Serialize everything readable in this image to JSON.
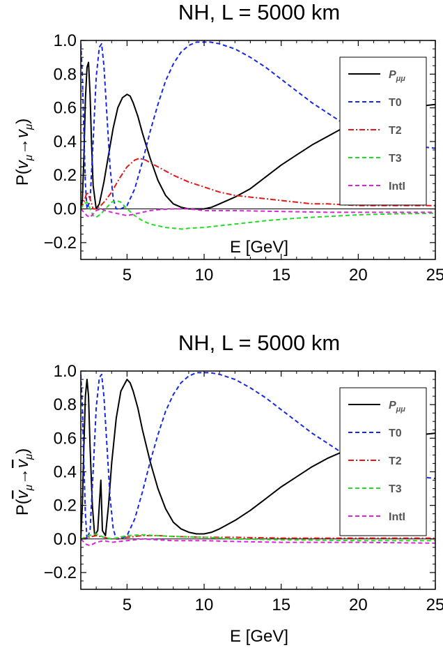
{
  "chart_data": [
    {
      "type": "line",
      "title": "NH, L = 5000 km",
      "xlabel": "E [GeV]",
      "ylabel": "P(ν_μ→ν_μ)",
      "xlim": [
        2,
        25
      ],
      "ylim": [
        -0.3,
        1.0
      ],
      "xticks": [
        "5",
        "10",
        "15",
        "20",
        "25"
      ],
      "yticks": [
        "−0.2",
        "0.0",
        "0.2",
        "0.4",
        "0.6",
        "0.8",
        "1.0"
      ],
      "zero_line": true,
      "legend_position": "top-right",
      "series": [
        {
          "name": "P_μμ",
          "color": "#000000",
          "dash": "solid",
          "x": [
            2,
            2.1,
            2.2,
            2.3,
            2.4,
            2.5,
            2.6,
            2.7,
            2.8,
            3.0,
            3.2,
            3.5,
            3.8,
            4.1,
            4.4,
            4.7,
            5.0,
            5.2,
            5.4,
            5.7,
            6.0,
            6.5,
            7.0,
            7.5,
            8.0,
            8.5,
            9.0,
            9.5,
            10.0,
            10.5,
            11.0,
            12.0,
            13.0,
            14.0,
            15.0,
            16.0,
            17.0,
            18.0,
            19.0,
            20.0,
            21.0,
            22.0,
            23.0,
            24.0,
            25.0
          ],
          "y": [
            0.0,
            0.05,
            0.3,
            0.65,
            0.84,
            0.87,
            0.68,
            0.38,
            0.14,
            0.0,
            0.03,
            0.16,
            0.32,
            0.48,
            0.6,
            0.66,
            0.68,
            0.67,
            0.63,
            0.55,
            0.45,
            0.3,
            0.17,
            0.08,
            0.03,
            0.01,
            0.0,
            0.0,
            0.0,
            0.01,
            0.03,
            0.07,
            0.12,
            0.19,
            0.26,
            0.32,
            0.38,
            0.43,
            0.48,
            0.52,
            0.55,
            0.58,
            0.6,
            0.61,
            0.62
          ]
        },
        {
          "name": "T0",
          "color": "#1428e6",
          "dash": "6,4",
          "x": [
            2,
            2.1,
            2.2,
            2.3,
            2.4,
            2.6,
            2.8,
            3.0,
            3.2,
            3.35,
            3.5,
            3.7,
            3.9,
            4.1,
            4.3,
            4.6,
            5.0,
            5.5,
            6.0,
            6.5,
            7.0,
            7.5,
            8.0,
            8.5,
            9.0,
            9.5,
            10.0,
            10.4,
            11.0,
            12.0,
            13.0,
            14.0,
            15.0,
            16.0,
            17.0,
            18.0,
            19.0,
            20.0,
            21.0,
            22.0,
            23.0,
            24.0,
            25.0
          ],
          "y": [
            0.98,
            0.8,
            0.45,
            0.15,
            0.0,
            0.05,
            0.4,
            0.78,
            0.96,
            0.98,
            0.85,
            0.55,
            0.25,
            0.06,
            0.0,
            0.0,
            0.02,
            0.12,
            0.28,
            0.46,
            0.62,
            0.76,
            0.86,
            0.93,
            0.97,
            0.99,
            0.99,
            0.99,
            0.98,
            0.95,
            0.9,
            0.84,
            0.77,
            0.7,
            0.63,
            0.57,
            0.51,
            0.47,
            0.43,
            0.4,
            0.38,
            0.37,
            0.36
          ]
        },
        {
          "name": "T2",
          "color": "#e11919",
          "dash": "8,3,2,3",
          "x": [
            2,
            2.2,
            2.4,
            2.6,
            2.8,
            3.0,
            3.3,
            3.6,
            4.0,
            4.5,
            5.0,
            5.5,
            5.8,
            6.2,
            7.0,
            8.0,
            9.0,
            10.0,
            11.0,
            12.0,
            13.0,
            14.0,
            15.0,
            16.0,
            17.0,
            18.0,
            20.0,
            22.0,
            25.0
          ],
          "y": [
            0.0,
            0.04,
            0.1,
            0.06,
            0.0,
            0.0,
            0.02,
            0.05,
            0.1,
            0.18,
            0.25,
            0.29,
            0.3,
            0.29,
            0.25,
            0.2,
            0.16,
            0.13,
            0.1,
            0.08,
            0.07,
            0.06,
            0.05,
            0.04,
            0.03,
            0.03,
            0.02,
            0.02,
            0.02
          ]
        },
        {
          "name": "T3",
          "color": "#22dd22",
          "dash": "6,4",
          "x": [
            2,
            2.2,
            2.4,
            2.6,
            2.8,
            3.0,
            3.3,
            3.6,
            4.0,
            4.3,
            4.6,
            5.0,
            5.5,
            6.0,
            6.5,
            7.0,
            7.5,
            8.0,
            8.6,
            9.0,
            10.0,
            11.0,
            12.0,
            13.0,
            14.0,
            16.0,
            18.0,
            20.0,
            22.0,
            25.0
          ],
          "y": [
            0.0,
            0.03,
            0.04,
            0.0,
            -0.04,
            -0.05,
            -0.03,
            0.0,
            0.04,
            0.05,
            0.04,
            0.0,
            -0.04,
            -0.07,
            -0.09,
            -0.1,
            -0.11,
            -0.115,
            -0.12,
            -0.115,
            -0.11,
            -0.1,
            -0.09,
            -0.08,
            -0.07,
            -0.055,
            -0.045,
            -0.035,
            -0.03,
            -0.025
          ]
        },
        {
          "name": "IntI",
          "color": "#e020e0",
          "dash": "6,4",
          "x": [
            2,
            2.2,
            2.4,
            2.6,
            2.8,
            3.0,
            3.3,
            3.6,
            4.0,
            4.5,
            5.0,
            5.5,
            6.0,
            6.5,
            7.0,
            8.0,
            9.0,
            10.0,
            12.0,
            15.0,
            18.0,
            20.0,
            22.0,
            25.0
          ],
          "y": [
            0.0,
            -0.02,
            -0.04,
            -0.05,
            -0.03,
            -0.01,
            0.0,
            -0.01,
            -0.02,
            -0.03,
            -0.04,
            -0.03,
            -0.02,
            -0.01,
            -0.005,
            0.0,
            0.0,
            -0.01,
            -0.01,
            -0.015,
            -0.02,
            -0.02,
            -0.02,
            -0.02
          ]
        }
      ]
    },
    {
      "type": "line",
      "title": "NH, L = 5000 km",
      "xlabel": "E [GeV]",
      "ylabel": "P(ν̄_μ→ν̄_μ)",
      "xlim": [
        2,
        25
      ],
      "ylim": [
        -0.3,
        1.0
      ],
      "xticks": [
        "5",
        "10",
        "15",
        "20",
        "25"
      ],
      "yticks": [
        "−0.2",
        "0.0",
        "0.2",
        "0.4",
        "0.6",
        "0.8",
        "1.0"
      ],
      "zero_line": true,
      "legend_position": "top-right",
      "series": [
        {
          "name": "P_μμ",
          "color": "#000000",
          "dash": "solid",
          "x": [
            2,
            2.1,
            2.2,
            2.3,
            2.4,
            2.5,
            2.6,
            2.75,
            2.9,
            3.1,
            3.3,
            3.4,
            3.6,
            3.8,
            4.0,
            4.3,
            4.6,
            5.0,
            5.2,
            5.4,
            5.7,
            6.0,
            6.5,
            7.0,
            7.5,
            8.0,
            8.5,
            9.0,
            9.5,
            10.0,
            10.5,
            11.0,
            12.0,
            13.0,
            14.0,
            15.0,
            16.0,
            17.0,
            18.0,
            19.0,
            20.0,
            21.0,
            22.0,
            23.0,
            24.0,
            25.0
          ],
          "y": [
            0.0,
            0.2,
            0.55,
            0.85,
            0.95,
            0.85,
            0.55,
            0.2,
            0.02,
            0.05,
            0.35,
            0.05,
            0.02,
            0.2,
            0.45,
            0.72,
            0.88,
            0.95,
            0.93,
            0.88,
            0.78,
            0.65,
            0.46,
            0.3,
            0.18,
            0.1,
            0.06,
            0.04,
            0.03,
            0.03,
            0.04,
            0.06,
            0.11,
            0.17,
            0.24,
            0.31,
            0.37,
            0.43,
            0.48,
            0.52,
            0.55,
            0.58,
            0.6,
            0.61,
            0.62,
            0.63
          ]
        },
        {
          "name": "T0",
          "color": "#1428e6",
          "dash": "6,4",
          "x": [
            2,
            2.1,
            2.2,
            2.3,
            2.4,
            2.6,
            2.8,
            3.0,
            3.2,
            3.35,
            3.5,
            3.7,
            3.9,
            4.1,
            4.3,
            4.6,
            5.0,
            5.5,
            6.0,
            6.5,
            7.0,
            7.5,
            8.0,
            8.5,
            9.0,
            9.5,
            10.0,
            10.4,
            11.0,
            12.0,
            13.0,
            14.0,
            15.0,
            16.0,
            17.0,
            18.0,
            19.0,
            20.0,
            21.0,
            22.0,
            23.0,
            24.0,
            25.0
          ],
          "y": [
            0.98,
            0.8,
            0.45,
            0.15,
            0.0,
            0.05,
            0.4,
            0.78,
            0.96,
            0.98,
            0.85,
            0.55,
            0.25,
            0.06,
            0.0,
            0.0,
            0.02,
            0.12,
            0.28,
            0.46,
            0.62,
            0.76,
            0.86,
            0.93,
            0.97,
            0.99,
            0.99,
            0.99,
            0.98,
            0.95,
            0.9,
            0.84,
            0.77,
            0.7,
            0.63,
            0.57,
            0.51,
            0.47,
            0.43,
            0.4,
            0.38,
            0.37,
            0.36
          ]
        },
        {
          "name": "T2",
          "color": "#e11919",
          "dash": "8,3,2,3",
          "x": [
            2,
            2.5,
            3.0,
            3.5,
            4.0,
            5.0,
            6.0,
            7.0,
            8.0,
            10.0,
            12.0,
            15.0,
            20.0,
            25.0
          ],
          "y": [
            0.0,
            0.01,
            0.02,
            0.01,
            0.0,
            0.01,
            0.02,
            0.02,
            0.015,
            0.01,
            0.01,
            0.005,
            0.005,
            0.005
          ]
        },
        {
          "name": "T3",
          "color": "#22dd22",
          "dash": "6,4",
          "x": [
            2,
            2.5,
            3.0,
            3.5,
            4.0,
            5.0,
            6.0,
            7.0,
            8.0,
            10.0,
            12.0,
            15.0,
            20.0,
            25.0
          ],
          "y": [
            0.0,
            0.02,
            0.03,
            0.01,
            0.0,
            0.02,
            0.025,
            0.02,
            0.015,
            0.01,
            0.0,
            -0.005,
            -0.01,
            -0.01
          ]
        },
        {
          "name": "IntI",
          "color": "#e020e0",
          "dash": "6,4",
          "x": [
            2,
            2.3,
            2.6,
            3.0,
            3.5,
            4.0,
            5.0,
            6.0,
            7.0,
            8.0,
            10.0,
            12.0,
            15.0,
            20.0,
            25.0
          ],
          "y": [
            0.0,
            -0.03,
            -0.04,
            -0.02,
            -0.01,
            -0.02,
            -0.01,
            0.0,
            -0.005,
            -0.01,
            -0.01,
            -0.015,
            -0.02,
            -0.02,
            -0.025
          ]
        }
      ]
    }
  ]
}
